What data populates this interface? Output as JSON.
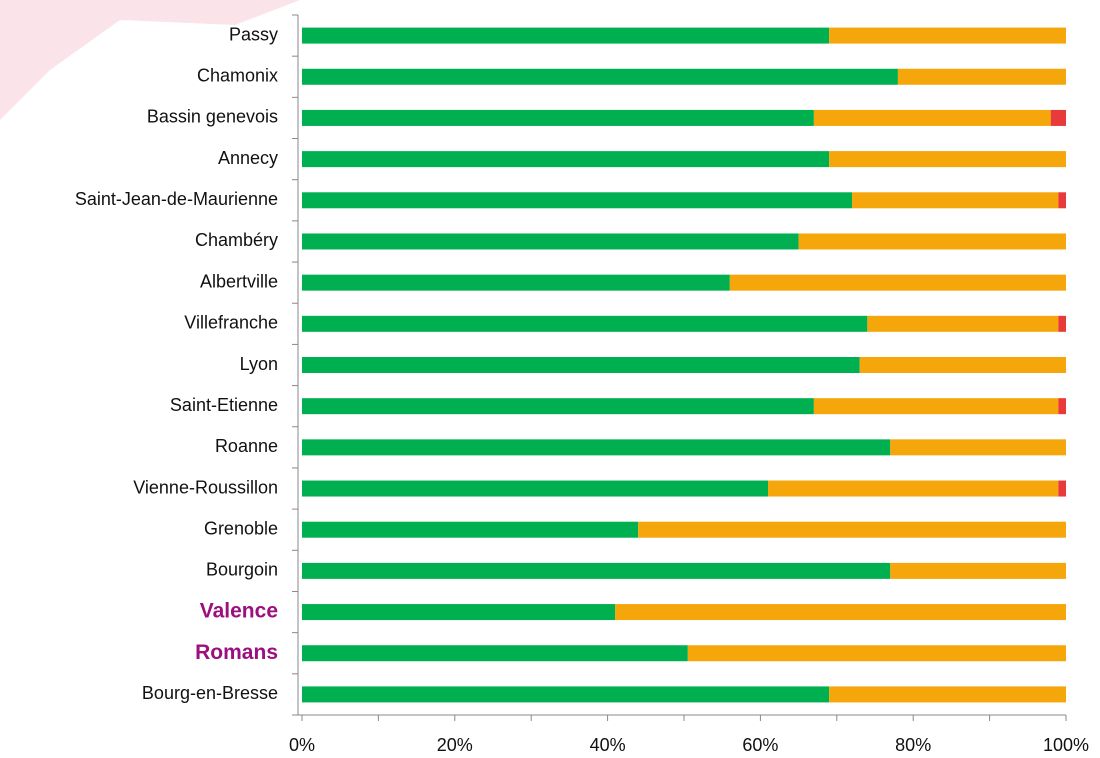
{
  "chart_data": {
    "type": "stacked-barh",
    "categories": [
      "Passy",
      "Chamonix",
      "Bassin genevois",
      "Annecy",
      "Saint-Jean-de-Maurienne",
      "Chambéry",
      "Albertville",
      "Villefranche",
      "Lyon",
      "Saint-Etienne",
      "Roanne",
      "Vienne-Roussillon",
      "Grenoble",
      "Bourgoin",
      "Valence",
      "Romans",
      "Bourg-en-Bresse"
    ],
    "series": [
      {
        "color": "#00b050",
        "values": [
          69,
          78,
          67,
          69,
          72,
          65,
          56,
          74,
          73,
          67,
          77,
          61,
          44,
          77,
          41,
          50.5,
          69
        ]
      },
      {
        "color": "#f5a60a",
        "values": [
          31,
          22,
          31,
          31,
          27,
          35,
          44,
          25,
          27,
          32,
          23,
          38,
          56,
          23,
          59,
          49.5,
          31
        ]
      },
      {
        "color": "#e83a3a",
        "values": [
          0,
          0,
          2,
          0,
          1,
          0,
          0,
          1,
          0,
          1,
          0,
          1,
          0,
          0,
          0,
          0,
          0
        ]
      }
    ],
    "xlim": [
      0,
      100
    ],
    "xticks": [
      {
        "value": 0,
        "label": "0%"
      },
      {
        "value": 20,
        "label": "20%"
      },
      {
        "value": 40,
        "label": "40%"
      },
      {
        "value": 60,
        "label": "60%"
      },
      {
        "value": 80,
        "label": "80%"
      },
      {
        "value": 100,
        "label": "100%"
      }
    ],
    "highlight_indices": [
      14,
      15
    ],
    "highlight_color": "#9c0f7f"
  }
}
